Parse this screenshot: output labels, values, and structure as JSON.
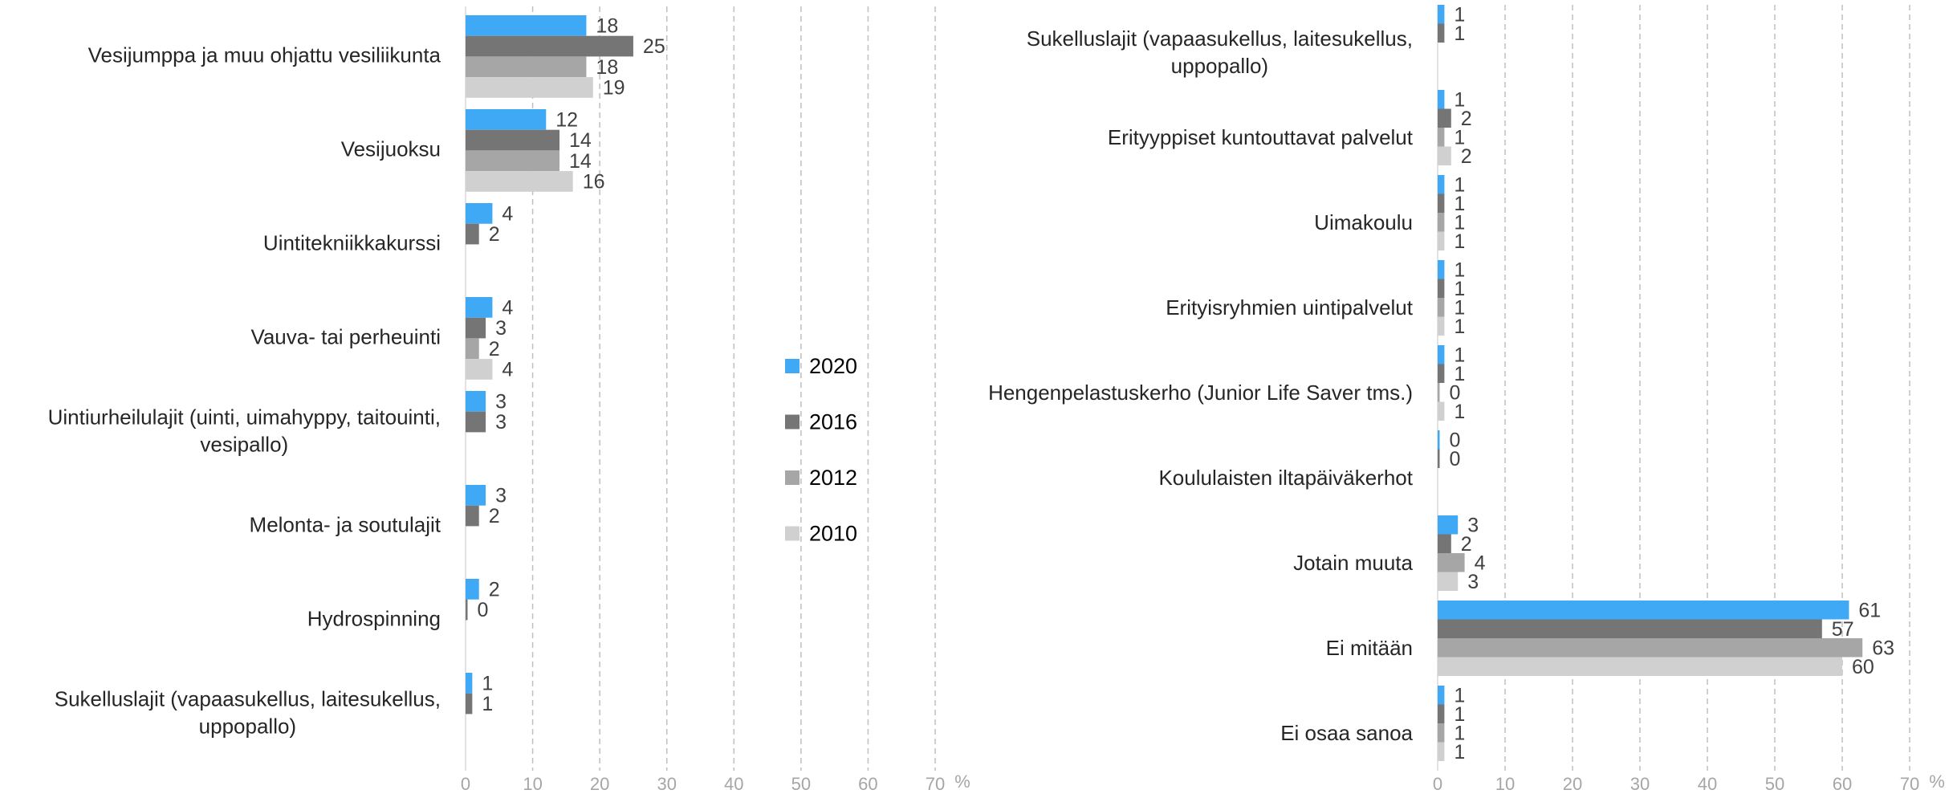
{
  "chart_data": [
    {
      "type": "bar",
      "orientation": "horizontal",
      "categories": [
        "Vesijumppa ja muu ohjattu vesiliikunta",
        "Vesijuoksu",
        "Uintitekniikkakurssi",
        "Vauva- tai perheuinti",
        "Uintiurheilulajit (uinti, uimahyppy, taitouinti, vesipallo)",
        "Melonta- ja soutulajit",
        "Hydrospinning",
        "Sukelluslajit (vapaasukellus, laitesukellus, uppopallo)"
      ],
      "series": [
        {
          "name": "2020",
          "color": "#3fa9f5",
          "values": [
            18,
            12,
            4,
            4,
            3,
            3,
            2,
            1
          ]
        },
        {
          "name": "2016",
          "color": "#757575",
          "values": [
            25,
            14,
            2,
            3,
            3,
            2,
            0,
            1
          ]
        },
        {
          "name": "2012",
          "color": "#a6a6a6",
          "values": [
            18,
            14,
            null,
            2,
            null,
            null,
            null,
            null
          ]
        },
        {
          "name": "2010",
          "color": "#d0d0d0",
          "values": [
            19,
            16,
            null,
            4,
            null,
            null,
            null,
            null
          ]
        }
      ],
      "xlim": [
        0,
        70
      ],
      "xticks": [
        0,
        10,
        20,
        30,
        40,
        50,
        60,
        70
      ],
      "xlabel": "%",
      "grid": true
    },
    {
      "type": "bar",
      "orientation": "horizontal",
      "categories": [
        "Sukelluslajit (vapaasukellus, laitesukellus, uppopallo)",
        "Erityyppiset kuntouttavat palvelut",
        "Uimakoulu",
        "Erityisryhmien uintipalvelut",
        "Hengenpelastuskerho (Junior Life Saver tms.)",
        "Koululaisten iltapäiväkerhot",
        "Jotain muuta",
        "Ei mitään",
        "Ei osaa sanoa"
      ],
      "series": [
        {
          "name": "2020",
          "color": "#3fa9f5",
          "values": [
            1,
            1,
            1,
            1,
            1,
            0,
            3,
            61,
            1
          ]
        },
        {
          "name": "2016",
          "color": "#757575",
          "values": [
            1,
            2,
            1,
            1,
            1,
            0,
            2,
            57,
            1
          ]
        },
        {
          "name": "2012",
          "color": "#a6a6a6",
          "values": [
            null,
            1,
            1,
            1,
            0,
            null,
            4,
            63,
            1
          ]
        },
        {
          "name": "2010",
          "color": "#d0d0d0",
          "values": [
            null,
            2,
            1,
            1,
            1,
            null,
            3,
            60,
            1
          ]
        }
      ],
      "xlim": [
        0,
        70
      ],
      "xticks": [
        0,
        10,
        20,
        30,
        40,
        50,
        60,
        70
      ],
      "xlabel": "%",
      "grid": true
    }
  ]
}
